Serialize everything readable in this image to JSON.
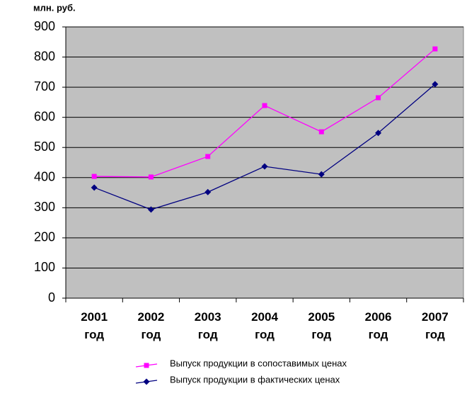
{
  "chart_data": {
    "type": "line",
    "y_label": "млн. руб.",
    "categories": [
      "2001 год",
      "2002 год",
      "2003 год",
      "2004 год",
      "2005 год",
      "2006 год",
      "2007 год"
    ],
    "series": [
      {
        "name": "Выпуск продукции в сопоставимых ценах",
        "color": "#ff00ff",
        "marker": "square",
        "values": [
          404,
          402,
          470,
          639,
          552,
          665,
          827
        ]
      },
      {
        "name": "Выпуск продукции в фактических ценах",
        "color": "#000080",
        "marker": "diamond",
        "values": [
          367,
          294,
          352,
          437,
          411,
          548,
          710
        ]
      }
    ],
    "ylim": [
      0,
      900
    ],
    "yticks": [
      0,
      100,
      200,
      300,
      400,
      500,
      600,
      700,
      800,
      900
    ],
    "grid": true,
    "plot_background": "#c0c0c0",
    "legend": "bottom"
  }
}
